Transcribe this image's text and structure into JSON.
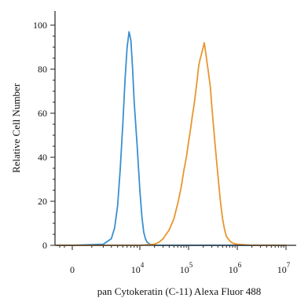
{
  "chart_data": {
    "type": "line",
    "title": "",
    "xlabel": "pan Cytokeratin (C-11) Alexa Fluor 488",
    "ylabel": "Relative Cell Number",
    "x_scale": "biexponential",
    "xlim": [
      -1000,
      10000000
    ],
    "ylim": [
      0,
      100
    ],
    "y_ticks": [
      0,
      20,
      40,
      60,
      80,
      100
    ],
    "x_ticks": [
      {
        "value": 0,
        "label": "0"
      },
      {
        "value": 10000,
        "base": "10",
        "exp": "4"
      },
      {
        "value": 100000,
        "base": "10",
        "exp": "5"
      },
      {
        "value": 1000000,
        "base": "10",
        "exp": "6"
      },
      {
        "value": 10000000,
        "base": "10",
        "exp": "7"
      }
    ],
    "grid": false,
    "series": [
      {
        "color": "#3a8fd0",
        "x": [
          -1000,
          0,
          2000,
          3000,
          3500,
          4000,
          4500,
          5000,
          5500,
          6000,
          6500,
          7000,
          7500,
          8000,
          9000,
          10000,
          11000,
          12000,
          13000,
          14000,
          16000,
          20000,
          30000,
          100000,
          1000000,
          10000000
        ],
        "y": [
          0,
          0,
          0.5,
          3,
          8,
          18,
          35,
          55,
          75,
          90,
          97,
          93,
          80,
          65,
          45,
          25,
          13,
          6,
          3,
          1.5,
          0.5,
          0,
          0,
          0,
          0,
          0
        ]
      },
      {
        "color": "#e8962e",
        "x": [
          -1000,
          10000,
          20000,
          25000,
          30000,
          40000,
          50000,
          60000,
          70000,
          80000,
          90000,
          100000,
          110000,
          120000,
          130000,
          150000,
          160000,
          170000,
          180000,
          190000,
          210000,
          230000,
          250000,
          280000,
          300000,
          350000,
          400000,
          450000,
          500000,
          550000,
          600000,
          700000,
          800000,
          1000000,
          2000000,
          10000000
        ],
        "y": [
          0,
          0,
          0.5,
          1.5,
          3,
          7,
          12,
          19,
          26,
          34,
          40,
          47,
          53,
          59,
          64,
          75,
          81,
          84,
          86,
          88,
          92,
          86,
          80,
          72,
          63,
          46,
          32,
          20,
          12,
          7,
          4,
          2,
          1,
          0.5,
          0,
          0
        ]
      }
    ]
  }
}
